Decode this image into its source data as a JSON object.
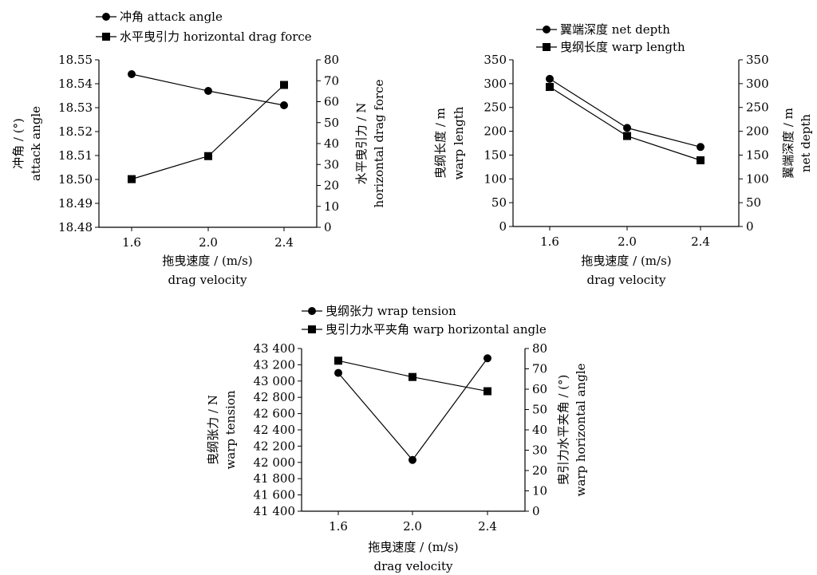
{
  "chart_data": [
    {
      "type": "line",
      "legend_position": "top-left",
      "categories": [
        "1.6",
        "2.0",
        "2.4"
      ],
      "xlabel": [
        "拖曳速度 / (m/s)",
        "drag velocity"
      ],
      "ylabel_left": [
        "冲角 / (°)",
        "attack angle"
      ],
      "ylabel_right": [
        "水平曳引力 / N",
        "horizontal drag force"
      ],
      "ylim_left": [
        18.48,
        18.55
      ],
      "ylim_right": [
        0,
        80
      ],
      "yticks_left": [
        "18.48",
        "18.49",
        "18.50",
        "18.51",
        "18.52",
        "18.53",
        "18.54",
        "18.55"
      ],
      "yticks_right": [
        "0",
        "10",
        "20",
        "30",
        "40",
        "50",
        "60",
        "70",
        "80"
      ],
      "series": [
        {
          "name": "冲角 attack angle",
          "marker": "circle",
          "axis": "left",
          "values": [
            18.544,
            18.537,
            18.531
          ]
        },
        {
          "name": "水平曳引力 horizontal drag force",
          "marker": "square",
          "axis": "right",
          "values": [
            23,
            34,
            68
          ]
        }
      ]
    },
    {
      "type": "line",
      "legend_position": "top-left",
      "categories": [
        "1.6",
        "2.0",
        "2.4"
      ],
      "xlabel": [
        "拖曳速度 / (m/s)",
        "drag velocity"
      ],
      "ylabel_left": [
        "曳纲长度 / m",
        "warp length"
      ],
      "ylabel_right": [
        "翼端深度 / m",
        "net depth"
      ],
      "ylim_left": [
        0,
        350
      ],
      "ylim_right": [
        0,
        350
      ],
      "yticks_left": [
        "0",
        "50",
        "100",
        "150",
        "200",
        "250",
        "300",
        "350"
      ],
      "yticks_right": [
        "0",
        "50",
        "100",
        "150",
        "200",
        "250",
        "300",
        "350"
      ],
      "series": [
        {
          "name": "翼端深度 net depth",
          "marker": "circle",
          "axis": "right",
          "values": [
            310,
            207,
            167
          ]
        },
        {
          "name": "曳纲长度 warp length",
          "marker": "square",
          "axis": "left",
          "values": [
            293,
            190,
            139
          ]
        }
      ]
    },
    {
      "type": "line",
      "legend_position": "top-left",
      "categories": [
        "1.6",
        "2.0",
        "2.4"
      ],
      "xlabel": [
        "拖曳速度 / (m/s)",
        "drag velocity"
      ],
      "ylabel_left": [
        "曳纲张力 / N",
        "warp tension"
      ],
      "ylabel_right": [
        "曳引力水平夹角 / (°)",
        "warp horizontal angle"
      ],
      "ylim_left": [
        41400,
        43400
      ],
      "ylim_right": [
        0,
        80
      ],
      "yticks_left": [
        "41 400",
        "41 600",
        "41 800",
        "42 000",
        "42 200",
        "42 400",
        "42 600",
        "42 800",
        "43 000",
        "43 200",
        "43 400"
      ],
      "yticks_right": [
        "0",
        "10",
        "20",
        "30",
        "40",
        "50",
        "60",
        "70",
        "80"
      ],
      "series": [
        {
          "name": "曳纲张力 wrap tension",
          "marker": "circle",
          "axis": "left",
          "values": [
            43100,
            42030,
            43280
          ]
        },
        {
          "name": "曳引力水平夹角 warp horizontal angle",
          "marker": "square",
          "axis": "right",
          "values": [
            74,
            66,
            59
          ]
        }
      ]
    }
  ]
}
